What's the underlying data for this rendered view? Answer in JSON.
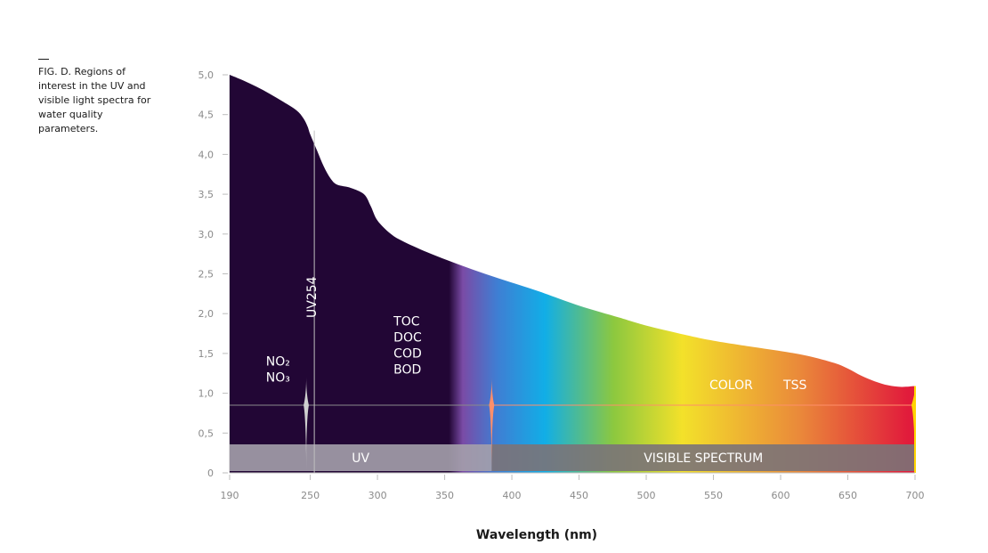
{
  "caption": "FIG. D. Regions of interest in the UV and visible light spectra for water quality parameters.",
  "chart_data": {
    "type": "area",
    "xlabel": "Wavelength (nm)",
    "ylabel": "",
    "xlim": [
      190,
      700
    ],
    "ylim": [
      0,
      5
    ],
    "x_ticks": [
      "190",
      "250",
      "300",
      "350",
      "400",
      "450",
      "500",
      "550",
      "600",
      "650",
      "700"
    ],
    "y_ticks": [
      "0",
      "0,5",
      "1,0",
      "1,5",
      "2,0",
      "2,5",
      "3,0",
      "3,5",
      "4,0",
      "4,5",
      "5,0"
    ],
    "x_tick_values": [
      190,
      250,
      300,
      350,
      400,
      450,
      500,
      550,
      600,
      650,
      700
    ],
    "y_tick_values": [
      0,
      0.5,
      1.0,
      1.5,
      2.0,
      2.5,
      3.0,
      3.5,
      4.0,
      4.5,
      5.0
    ],
    "curve": {
      "x": [
        190,
        200,
        210,
        220,
        230,
        240,
        245,
        248,
        250,
        255,
        260,
        265,
        270,
        280,
        290,
        295,
        300,
        310,
        320,
        340,
        360,
        380,
        400,
        420,
        450,
        480,
        500,
        530,
        550,
        580,
        600,
        620,
        640,
        650,
        660,
        670,
        680,
        690,
        700
      ],
      "y": [
        5.0,
        4.93,
        4.85,
        4.76,
        4.66,
        4.55,
        4.45,
        4.35,
        4.25,
        4.05,
        3.85,
        3.7,
        3.62,
        3.58,
        3.5,
        3.35,
        3.17,
        3.0,
        2.9,
        2.75,
        2.62,
        2.5,
        2.39,
        2.28,
        2.1,
        1.95,
        1.85,
        1.73,
        1.66,
        1.58,
        1.53,
        1.47,
        1.38,
        1.31,
        1.22,
        1.15,
        1.1,
        1.08,
        1.09
      ]
    },
    "markers": [
      {
        "name": "UV254",
        "x": 253
      },
      {
        "name": "NO2/NO3",
        "x": 247
      },
      {
        "name": "UV/Visible boundary",
        "x": 385
      }
    ],
    "parameter_labels": [
      {
        "lines": [
          "NO₂",
          "NO₃"
        ],
        "x": 215,
        "y": 1.35
      },
      {
        "lines": [
          "TOC",
          "DOC",
          "COD",
          "BOD"
        ],
        "x": 310,
        "y": 1.85
      },
      {
        "lines": [
          "COLOR"
        ],
        "x": 545,
        "y": 1.05
      },
      {
        "lines": [
          "TSS"
        ],
        "x": 600,
        "y": 1.05
      }
    ],
    "uv254_label": "UV254",
    "reference_line_y": 0.85,
    "bands": [
      {
        "label": "UV",
        "from": 190,
        "to": 385
      },
      {
        "label": "VISIBLE SPECTRUM",
        "from": 385,
        "to": 700
      }
    ],
    "colors": {
      "uv_dark": "#220635",
      "violet": "#7a4ba6",
      "blue": "#3f7ed3",
      "cyan": "#11aee7",
      "green": "#8cc83f",
      "yellow": "#f3e12a",
      "orange": "#ea8a3a",
      "red": "#e11b3b",
      "uv_band": "#a4a0ab",
      "visible_band": "#7b7378",
      "peak_uv": "#cfcfcf",
      "peak_visible_start": "#ff8f6a",
      "peak_visible_end": "#ffd400"
    }
  }
}
